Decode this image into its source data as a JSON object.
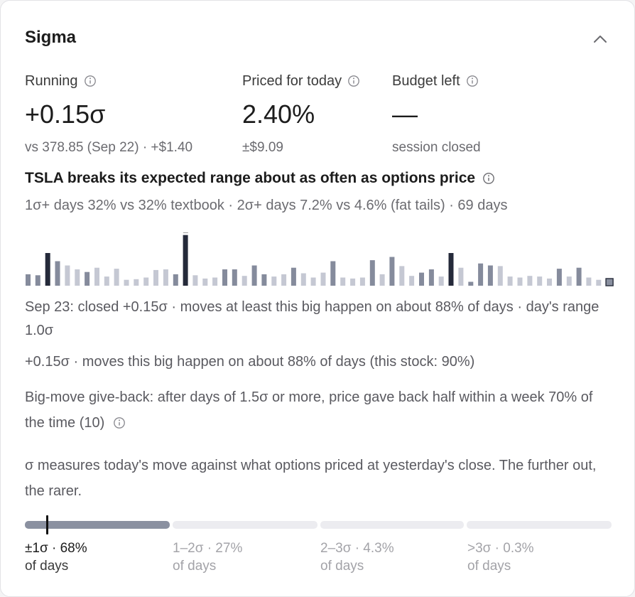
{
  "card": {
    "title": "Sigma",
    "collapse_icon": "chevron-up-icon"
  },
  "stats": [
    {
      "label": "Running",
      "value": "+0.15σ",
      "sub": "vs 378.85 (Sep 22) · +$1.40",
      "icon": "info-icon"
    },
    {
      "label": "Priced for today",
      "value": "2.40%",
      "sub": "±$9.09",
      "icon": "info-icon"
    },
    {
      "label": "Budget left",
      "value": "—",
      "sub": "session closed",
      "icon": "info-icon"
    }
  ],
  "range": {
    "heading": "TSLA breaks its expected range about as often as options price",
    "summary": "1σ+ days 32% vs 32% textbook · 2σ+ days 7.2% vs 4.6% (fat tails) · 69 days",
    "earnings_marker": "E"
  },
  "chart_data": {
    "type": "bar",
    "description_days": 60,
    "values": [
      0.35,
      0.32,
      1.0,
      0.75,
      0.62,
      0.5,
      0.42,
      0.55,
      0.28,
      0.52,
      0.18,
      0.2,
      0.25,
      0.48,
      0.5,
      0.35,
      1.55,
      0.32,
      0.22,
      0.25,
      0.5,
      0.5,
      0.3,
      0.62,
      0.35,
      0.28,
      0.35,
      0.55,
      0.38,
      0.25,
      0.4,
      0.75,
      0.25,
      0.22,
      0.25,
      0.78,
      0.35,
      0.88,
      0.6,
      0.3,
      0.4,
      0.5,
      0.28,
      1.0,
      0.55,
      0.12,
      0.68,
      0.62,
      0.6,
      0.28,
      0.25,
      0.3,
      0.28,
      0.22,
      0.52,
      0.28,
      0.55,
      0.25,
      0.18,
      0.22
    ],
    "bar_levels": [
      "mid",
      "mid",
      "dark",
      "mid",
      "light",
      "light",
      "mid",
      "light",
      "light",
      "light",
      "light",
      "light",
      "light",
      "light",
      "light",
      "mid",
      "dark",
      "light",
      "light",
      "light",
      "mid",
      "mid",
      "light",
      "mid",
      "mid",
      "light",
      "light",
      "mid",
      "light",
      "light",
      "light",
      "mid",
      "light",
      "light",
      "light",
      "mid",
      "light",
      "mid",
      "light",
      "light",
      "mid",
      "mid",
      "light",
      "dark",
      "light",
      "mid",
      "mid",
      "mid",
      "light",
      "light",
      "light",
      "light",
      "light",
      "light",
      "mid",
      "light",
      "mid",
      "light",
      "light",
      "today"
    ],
    "earnings_index": 16,
    "colors": {
      "dark": "#252a3a",
      "mid": "#858b9c",
      "light": "#c5c8d3",
      "today": "#8a90a0",
      "today_border": "#2f3442"
    }
  },
  "details": {
    "day_line": "Sep 23: closed +0.15σ · moves at least this big happen on about 88% of days · day's range 1.0σ",
    "move_line": "+0.15σ · moves this big happen on about 88% of days (this stock: 90%)",
    "giveback_line": "Big-move give-back: after days of 1.5σ or more, price gave back half within a week 70% of the time (10)",
    "explainer": "σ measures today's move against what options priced at yesterday's close. The further out, the rarer."
  },
  "buckets": [
    {
      "label": "±1σ · 68%",
      "sub": "of days",
      "active": true
    },
    {
      "label": "1–2σ · 27%",
      "sub": "of days",
      "active": false
    },
    {
      "label": "2–3σ · 4.3%",
      "sub": "of days",
      "active": false
    },
    {
      "label": ">3σ · 0.3%",
      "sub": "of days",
      "active": false
    }
  ],
  "colors": {
    "bucket_active": "#8a90a0",
    "bucket_inactive": "#ececf0",
    "text_muted": "#a3a3a8"
  }
}
